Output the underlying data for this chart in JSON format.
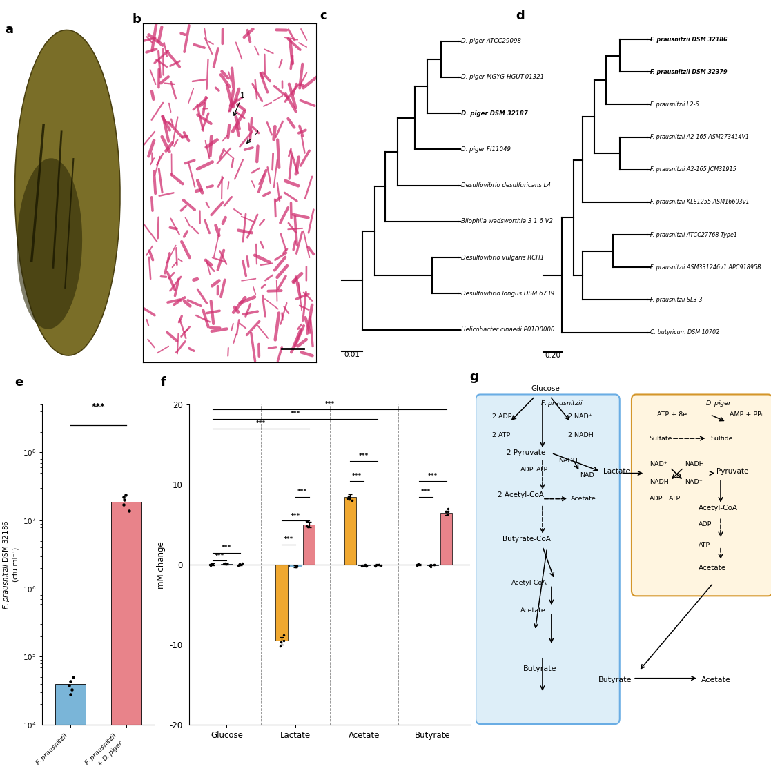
{
  "tree_c_taxa": [
    "D. piger ATCC29098",
    "D. piger MGYG-HGUT-01321",
    "D. piger DSM 32187",
    "D. piger FI11049",
    "Desulfovibrio desulfuricans L4",
    "Bilophila wadsworthia 3 1 6 V2",
    "Desulfovibrio vulgaris RCH1",
    "Desulfovibrio longus DSM 6739",
    "Helicobacter cinaedi P01D0000"
  ],
  "tree_c_bold": [
    2
  ],
  "tree_c_scale": "0.01",
  "tree_d_taxa": [
    "F. prausnitzii DSM 32186",
    "F. prausnitzii DSM 32379",
    "F. prausnitzii L2-6",
    "F. prausnitzii A2-165 ASM273414V1",
    "F. prausnitzii A2-165 JCM31915",
    "F. prausnitzii KLE1255 ASM16603v1",
    "F. prausnitzii ATCC27768 Type1",
    "F. prausnitzii ASM331246v1 APC91895B",
    "F. prausnitzii SL3-3",
    "C. butyricum DSM 10702"
  ],
  "tree_d_bold": [
    0,
    1
  ],
  "tree_d_scale": "0.20",
  "bar_e_value_fp": 40000,
  "bar_e_value_co": 19000000,
  "bar_e_color_fp": "#7ab5d8",
  "bar_e_color_co": "#e8838a",
  "bar_e_dots_fp": [
    28000,
    33000,
    38000,
    44000,
    50000
  ],
  "bar_e_dots_co": [
    14000000,
    17000000,
    20000000,
    22000000,
    24000000
  ],
  "bar_f_groups": [
    "Glucose",
    "Lactate",
    "Acetate",
    "Butyrate"
  ],
  "bar_f_orange": [
    0.05,
    -9.5,
    8.5,
    0.0
  ],
  "bar_f_blue": [
    0.08,
    -0.2,
    -0.1,
    -0.05
  ],
  "bar_f_pink": [
    0.04,
    5.0,
    0.0,
    6.5
  ],
  "bar_f_orange_err": [
    0.12,
    0.5,
    0.35,
    0.08
  ],
  "bar_f_blue_err": [
    0.08,
    0.15,
    0.08,
    0.04
  ],
  "bar_f_pink_err": [
    0.08,
    0.35,
    0.08,
    0.25
  ],
  "orange_color": "#f0a830",
  "blue_color": "#7ab5d8",
  "pink_color": "#e8838a",
  "fp_box_color": "#ddeef8",
  "fp_box_edge": "#6aade4",
  "dp_box_color": "#fff5e0",
  "dp_box_edge": "#d4962a"
}
